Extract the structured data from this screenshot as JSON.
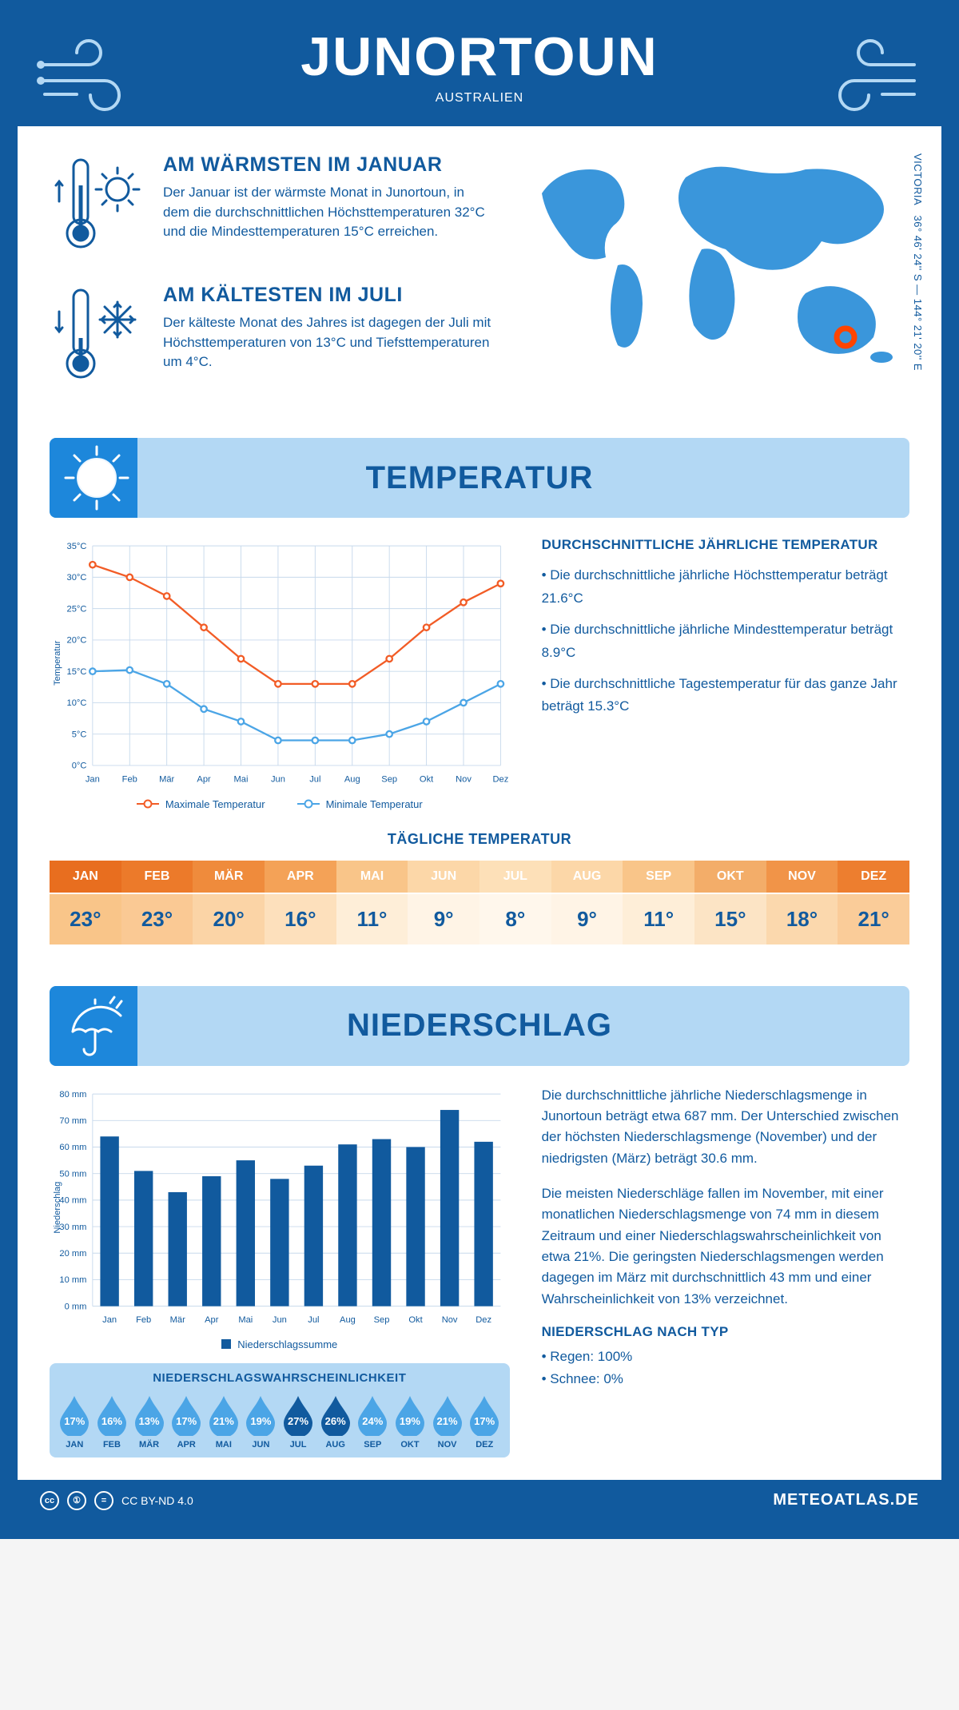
{
  "colors": {
    "primary": "#115a9e",
    "primary_light": "#1d87db",
    "banner_bg": "#b3d8f4",
    "grid": "#c7d9ec",
    "axis_text": "#115a9e",
    "max_line": "#f25c26",
    "min_line": "#4ba5e6",
    "bar": "#115a9e",
    "marker": "#ff6a00"
  },
  "header": {
    "title": "JUNORTOUN",
    "subtitle": "AUSTRALIEN"
  },
  "coords": {
    "region": "VICTORIA",
    "text": "36° 46' 24'' S — 144° 21' 20'' E"
  },
  "fact_warm": {
    "title": "AM WÄRMSTEN IM JANUAR",
    "body": "Der Januar ist der wärmste Monat in Junortoun, in dem die durchschnittlichen Höchsttemperaturen 32°C und die Mindesttemperaturen 15°C erreichen."
  },
  "fact_cold": {
    "title": "AM KÄLTESTEN IM JULI",
    "body": "Der kälteste Monat des Jahres ist dagegen der Juli mit Höchsttemperaturen von 13°C und Tiefsttemperaturen um 4°C."
  },
  "sections": {
    "temp": "TEMPERATUR",
    "precip": "NIEDERSCHLAG"
  },
  "months": [
    "Jan",
    "Feb",
    "Mär",
    "Apr",
    "Mai",
    "Jun",
    "Jul",
    "Aug",
    "Sep",
    "Okt",
    "Nov",
    "Dez"
  ],
  "months_upper": [
    "JAN",
    "FEB",
    "MÄR",
    "APR",
    "MAI",
    "JUN",
    "JUL",
    "AUG",
    "SEP",
    "OKT",
    "NOV",
    "DEZ"
  ],
  "temp_chart": {
    "ylabel": "Temperatur",
    "ylim": [
      0,
      35
    ],
    "ytick_step": 5,
    "max": [
      32,
      30,
      27,
      22,
      17,
      13,
      13,
      13,
      17,
      22,
      26,
      29
    ],
    "min": [
      15,
      15.2,
      13,
      9,
      7,
      4,
      4,
      4,
      5,
      7,
      10,
      13
    ],
    "legend_max": "Maximale Temperatur",
    "legend_min": "Minimale Temperatur"
  },
  "temp_info": {
    "title": "DURCHSCHNITTLICHE JÄHRLICHE TEMPERATUR",
    "b1": "• Die durchschnittliche jährliche Höchsttemperatur beträgt 21.6°C",
    "b2": "• Die durchschnittliche jährliche Mindesttemperatur beträgt 8.9°C",
    "b3": "• Die durchschnittliche Tagestemperatur für das ganze Jahr beträgt 15.3°C"
  },
  "daily_temp": {
    "title": "TÄGLICHE TEMPERATUR",
    "values": [
      "23°",
      "23°",
      "20°",
      "16°",
      "11°",
      "9°",
      "8°",
      "9°",
      "11°",
      "15°",
      "18°",
      "21°"
    ],
    "head_colors": [
      "#e86e1f",
      "#ec7a2a",
      "#ef8b3c",
      "#f4a257",
      "#f9c589",
      "#fcd7a8",
      "#fde0b8",
      "#fcd7a8",
      "#f9c589",
      "#f3ad69",
      "#f19448",
      "#ed7e2f"
    ],
    "val_colors": [
      "#f9c589",
      "#fac994",
      "#fbd4a6",
      "#fde0bc",
      "#feeed8",
      "#fff4e6",
      "#fff7ec",
      "#fff4e6",
      "#feeed8",
      "#fce4c5",
      "#fbd8ad",
      "#facc99"
    ]
  },
  "precip_chart": {
    "ylabel": "Niederschlag",
    "ylim": [
      0,
      80
    ],
    "ytick_step": 10,
    "values": [
      64,
      51,
      43,
      49,
      55,
      48,
      53,
      61,
      63,
      60,
      74,
      62
    ],
    "legend": "Niederschlagssumme"
  },
  "precip_info": {
    "p1": "Die durchschnittliche jährliche Niederschlagsmenge in Junortoun beträgt etwa 687 mm. Der Unterschied zwischen der höchsten Niederschlagsmenge (November) und der niedrigsten (März) beträgt 30.6 mm.",
    "p2": "Die meisten Niederschläge fallen im November, mit einer monatlichen Niederschlagsmenge von 74 mm in diesem Zeitraum und einer Niederschlagswahrscheinlichkeit von etwa 21%. Die geringsten Niederschlagsmengen werden dagegen im März mit durchschnittlich 43 mm und einer Wahrscheinlichkeit von 13% verzeichnet.",
    "type_title": "NIEDERSCHLAG NACH TYP",
    "type1": "• Regen: 100%",
    "type2": "• Schnee: 0%"
  },
  "prob": {
    "title": "NIEDERSCHLAGSWAHRSCHEINLICHKEIT",
    "values": [
      17,
      16,
      13,
      17,
      21,
      19,
      27,
      26,
      24,
      19,
      21,
      17
    ],
    "dark_threshold": 25,
    "color_light": "#4ba5e6",
    "color_dark": "#115a9e"
  },
  "footer": {
    "license": "CC BY-ND 4.0",
    "brand": "METEOATLAS.DE"
  }
}
